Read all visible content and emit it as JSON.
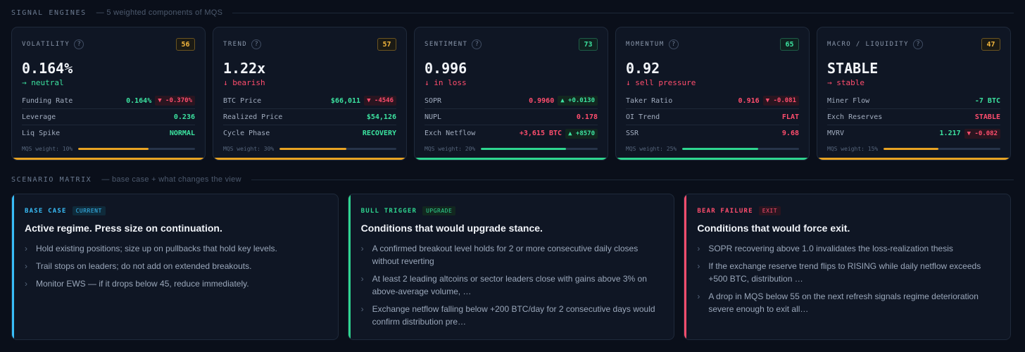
{
  "signal_engines": {
    "title": "SIGNAL ENGINES",
    "subtitle": "— 5 weighted components of MQS",
    "engines": [
      {
        "name": "VOLATILITY",
        "score": "56",
        "score_tone": "amber",
        "value": "0.164%",
        "delta": "→ neutral",
        "delta_tone": "green",
        "rows": [
          {
            "label": "Funding Rate",
            "value": "0.164%",
            "tone": "green",
            "chip": "▼ -0.370%",
            "chip_tone": "red"
          },
          {
            "label": "Leverage",
            "value": "0.236",
            "tone": "green"
          },
          {
            "label": "Liq Spike",
            "value": "NORMAL",
            "tone": "green"
          }
        ],
        "weight_label": "MQS weight: 10%",
        "weight_fill": 0.6,
        "accent": "#e8a323"
      },
      {
        "name": "TREND",
        "score": "57",
        "score_tone": "amber",
        "value": "1.22x",
        "delta": "↓ bearish",
        "delta_tone": "red",
        "rows": [
          {
            "label": "BTC Price",
            "value": "$66,011",
            "tone": "green",
            "chip": "▼ -4546",
            "chip_tone": "red"
          },
          {
            "label": "Realized Price",
            "value": "$54,126",
            "tone": "green"
          },
          {
            "label": "Cycle Phase",
            "value": "RECOVERY",
            "tone": "green"
          }
        ],
        "weight_label": "MQS weight: 30%",
        "weight_fill": 0.57,
        "accent": "#e8a323"
      },
      {
        "name": "SENTIMENT",
        "score": "73",
        "score_tone": "green",
        "value": "0.996",
        "delta": "↓ in loss",
        "delta_tone": "red",
        "rows": [
          {
            "label": "SOPR",
            "value": "0.9960",
            "tone": "red",
            "chip": "▲ +0.0130",
            "chip_tone": "green"
          },
          {
            "label": "NUPL",
            "value": "0.178",
            "tone": "red"
          },
          {
            "label": "Exch Netflow",
            "value": "+3,615 BTC",
            "tone": "red",
            "chip": "▲ +8570",
            "chip_tone": "green"
          }
        ],
        "weight_label": "MQS weight: 20%",
        "weight_fill": 0.73,
        "accent": "#2ed58f"
      },
      {
        "name": "MOMENTUM",
        "score": "65",
        "score_tone": "green",
        "value": "0.92",
        "delta": "↓ sell pressure",
        "delta_tone": "red",
        "rows": [
          {
            "label": "Taker Ratio",
            "value": "0.916",
            "tone": "red",
            "chip": "▼ -0.081",
            "chip_tone": "red"
          },
          {
            "label": "OI Trend",
            "value": "FLAT",
            "tone": "red"
          },
          {
            "label": "SSR",
            "value": "9.68",
            "tone": "red"
          }
        ],
        "weight_label": "MQS weight: 25%",
        "weight_fill": 0.65,
        "accent": "#2ed58f"
      },
      {
        "name": "MACRO / LIQUIDITY",
        "score": "47",
        "score_tone": "amber",
        "value": "STABLE",
        "delta": "→ stable",
        "delta_tone": "red",
        "rows": [
          {
            "label": "Miner Flow",
            "value": "-7 BTC",
            "tone": "green"
          },
          {
            "label": "Exch Reserves",
            "value": "STABLE",
            "tone": "red"
          },
          {
            "label": "MVRV",
            "value": "1.217",
            "tone": "green",
            "chip": "▼ -0.082",
            "chip_tone": "red"
          }
        ],
        "weight_label": "MQS weight: 15%",
        "weight_fill": 0.47,
        "accent": "#e8a323"
      }
    ]
  },
  "scenario_matrix": {
    "title": "SCENARIO MATRIX",
    "subtitle": "— base case + what changes the view",
    "cards": [
      {
        "tag": "BASE CASE",
        "badge": "CURRENT",
        "accent": "#38bdf8",
        "badge_bg": "#0f2a3a",
        "title": "Active regime. Press size on continuation.",
        "bullets": [
          "Hold existing positions; size up on pullbacks that hold key levels.",
          "Trail stops on leaders; do not add on extended breakouts.",
          "Monitor EWS — if it drops below 45, reduce immediately."
        ]
      },
      {
        "tag": "BULL TRIGGER",
        "badge": "UPGRADE",
        "accent": "#2ed58f",
        "badge_bg": "#12271f",
        "title": "Conditions that would upgrade stance.",
        "bullets": [
          "A confirmed breakout level holds for 2 or more consecutive daily closes without reverting",
          "At least 2 leading altcoins or sector leaders close with gains above 3% on above-average volume, …",
          "Exchange netflow falling below +200 BTC/day for 2 consecutive days would confirm distribution pre…"
        ]
      },
      {
        "tag": "BEAR FAILURE",
        "badge": "EXIT",
        "accent": "#ff4d6d",
        "badge_bg": "#2a1520",
        "title": "Conditions that would force exit.",
        "bullets": [
          "SOPR recovering above 1.0 invalidates the loss-realization thesis",
          "If the exchange reserve trend flips to RISING while daily netflow exceeds +500 BTC, distribution …",
          "A drop in MQS below 55 on the next refresh signals regime deterioration severe enough to exit all…"
        ]
      }
    ]
  }
}
